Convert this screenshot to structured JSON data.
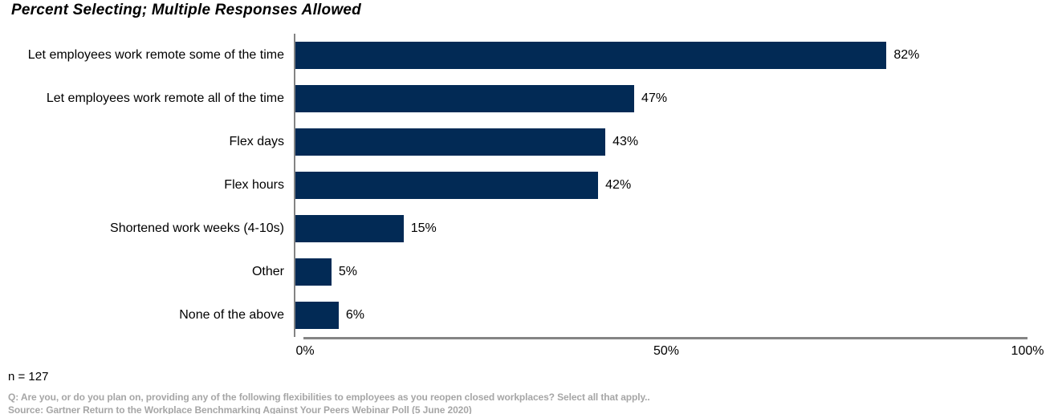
{
  "chart_data": {
    "type": "bar",
    "orientation": "horizontal",
    "title": "Percent Selecting; Multiple Responses Allowed",
    "categories": [
      "Let employees work remote some of the time",
      "Let employees work remote all of the time",
      "Flex days",
      "Flex hours",
      "Shortened work weeks (4-10s)",
      "Other",
      "None of the above"
    ],
    "values": [
      82,
      47,
      43,
      42,
      15,
      5,
      6
    ],
    "value_suffix": "%",
    "xlabel": "",
    "ylabel": "",
    "xlim": [
      0,
      100
    ],
    "x_ticks": [
      "0%",
      "50%",
      "100%"
    ],
    "grid": false,
    "legend": false,
    "data_labels": true,
    "bar_color": "#022A55",
    "axis_color": "#848484"
  },
  "footer": {
    "sample_size": "n = 127",
    "question": "Q: Are you, or do you plan on, providing any of the following flexibilities to employees as you reopen closed workplaces? Select all that apply..",
    "source": "Source: Gartner Return to the Workplace Benchmarking Against Your Peers Webinar Poll (5 June 2020)"
  }
}
